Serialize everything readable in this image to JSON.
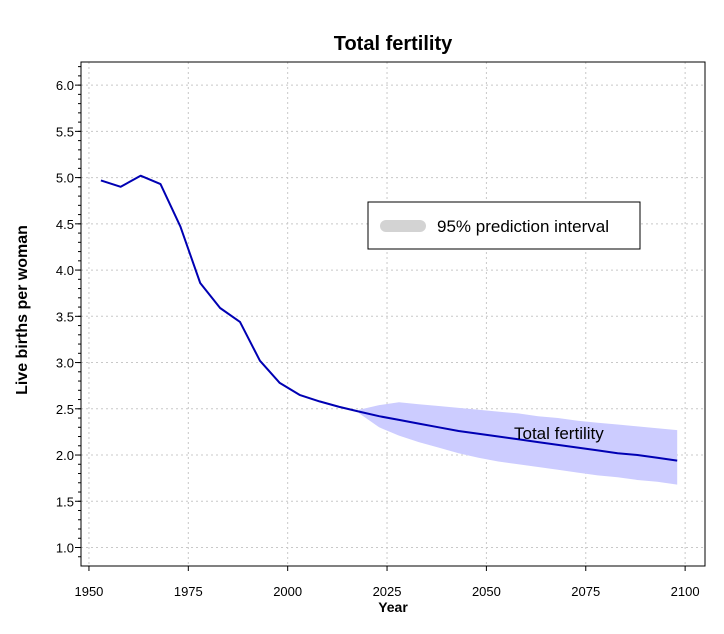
{
  "chart_data": {
    "type": "line",
    "title": "Total fertility",
    "xlabel": "Year",
    "ylabel": "Live births per woman",
    "xlim": [
      1948,
      2105
    ],
    "ylim": [
      0.8,
      6.25
    ],
    "x_ticks": [
      "1950",
      "1975",
      "2000",
      "2025",
      "2050",
      "2075",
      "2100"
    ],
    "y_ticks": [
      "1.0",
      "1.5",
      "2.0",
      "2.5",
      "3.0",
      "3.5",
      "4.0",
      "4.5",
      "5.0",
      "5.5",
      "6.0"
    ],
    "grid": true,
    "legend": {
      "position": "upper-right",
      "entries": [
        "95% prediction interval"
      ]
    },
    "annotation": "Total fertility",
    "colors": {
      "line": "#0000b3",
      "band": "#ccccff",
      "legend_swatch": "#d3d3d3"
    },
    "series": [
      {
        "name": "Total fertility",
        "x": [
          1953,
          1958,
          1963,
          1968,
          1973,
          1978,
          1983,
          1988,
          1993,
          1998,
          2003,
          2008,
          2013,
          2018,
          2023,
          2028,
          2033,
          2038,
          2043,
          2048,
          2053,
          2058,
          2063,
          2068,
          2073,
          2078,
          2083,
          2088,
          2093,
          2098
        ],
        "y": [
          4.97,
          4.9,
          5.02,
          4.93,
          4.47,
          3.86,
          3.59,
          3.44,
          3.02,
          2.78,
          2.65,
          2.58,
          2.52,
          2.47,
          2.42,
          2.38,
          2.34,
          2.3,
          2.26,
          2.23,
          2.2,
          2.17,
          2.14,
          2.11,
          2.08,
          2.05,
          2.02,
          2.0,
          1.97,
          1.94
        ]
      }
    ],
    "prediction_interval": {
      "name": "95% prediction interval",
      "x": [
        2018,
        2023,
        2028,
        2033,
        2038,
        2043,
        2048,
        2053,
        2058,
        2063,
        2068,
        2073,
        2078,
        2083,
        2088,
        2093,
        2098
      ],
      "lower": [
        2.45,
        2.3,
        2.21,
        2.14,
        2.08,
        2.02,
        1.97,
        1.93,
        1.9,
        1.87,
        1.84,
        1.81,
        1.78,
        1.76,
        1.73,
        1.71,
        1.68
      ],
      "upper": [
        2.49,
        2.54,
        2.57,
        2.55,
        2.53,
        2.51,
        2.49,
        2.47,
        2.45,
        2.42,
        2.4,
        2.37,
        2.35,
        2.33,
        2.31,
        2.29,
        2.27
      ]
    }
  }
}
